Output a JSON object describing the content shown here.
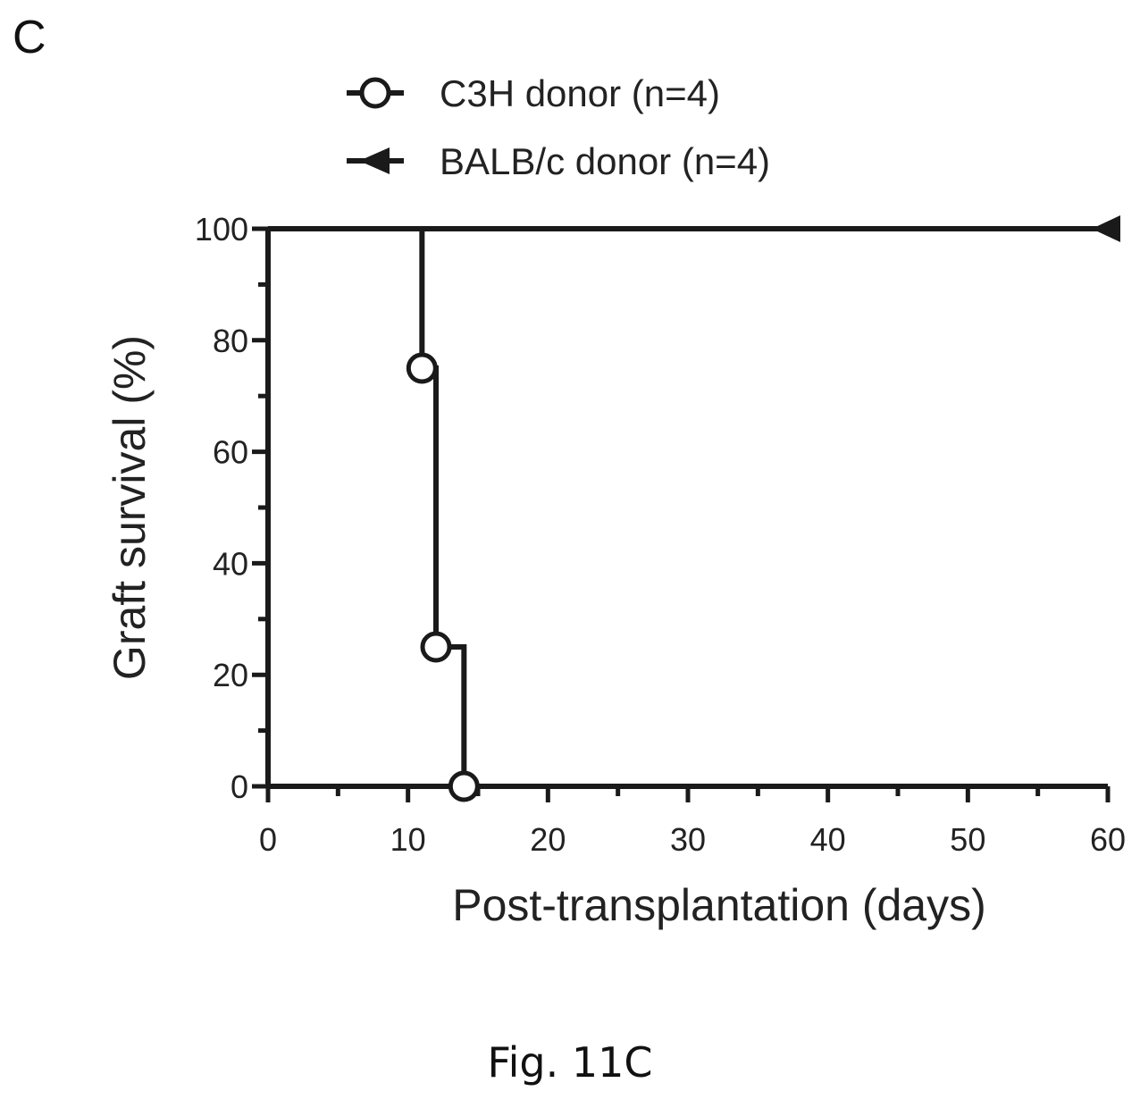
{
  "panel_label": "C",
  "caption": "Fig. 11C",
  "colors": {
    "ink": "#1a1a1a"
  },
  "chart_data": {
    "type": "line",
    "step": true,
    "xlabel": "Post-transplantation (days)",
    "ylabel": "Graft survival (%)",
    "xlim": [
      0,
      60
    ],
    "ylim": [
      0,
      100
    ],
    "x_ticks": [
      0,
      10,
      20,
      30,
      40,
      50,
      60
    ],
    "y_ticks": [
      0,
      20,
      40,
      60,
      80,
      100
    ],
    "legend_position": "top",
    "grid": false,
    "series": [
      {
        "name": "C3H donor (n=4)",
        "marker": "circle",
        "x": [
          0,
          11,
          12,
          14
        ],
        "y": [
          100,
          75,
          25,
          0
        ]
      },
      {
        "name": "BALB/c donor (n=4)",
        "marker": "triangle",
        "x": [
          0,
          60
        ],
        "y": [
          100,
          100
        ]
      }
    ]
  }
}
